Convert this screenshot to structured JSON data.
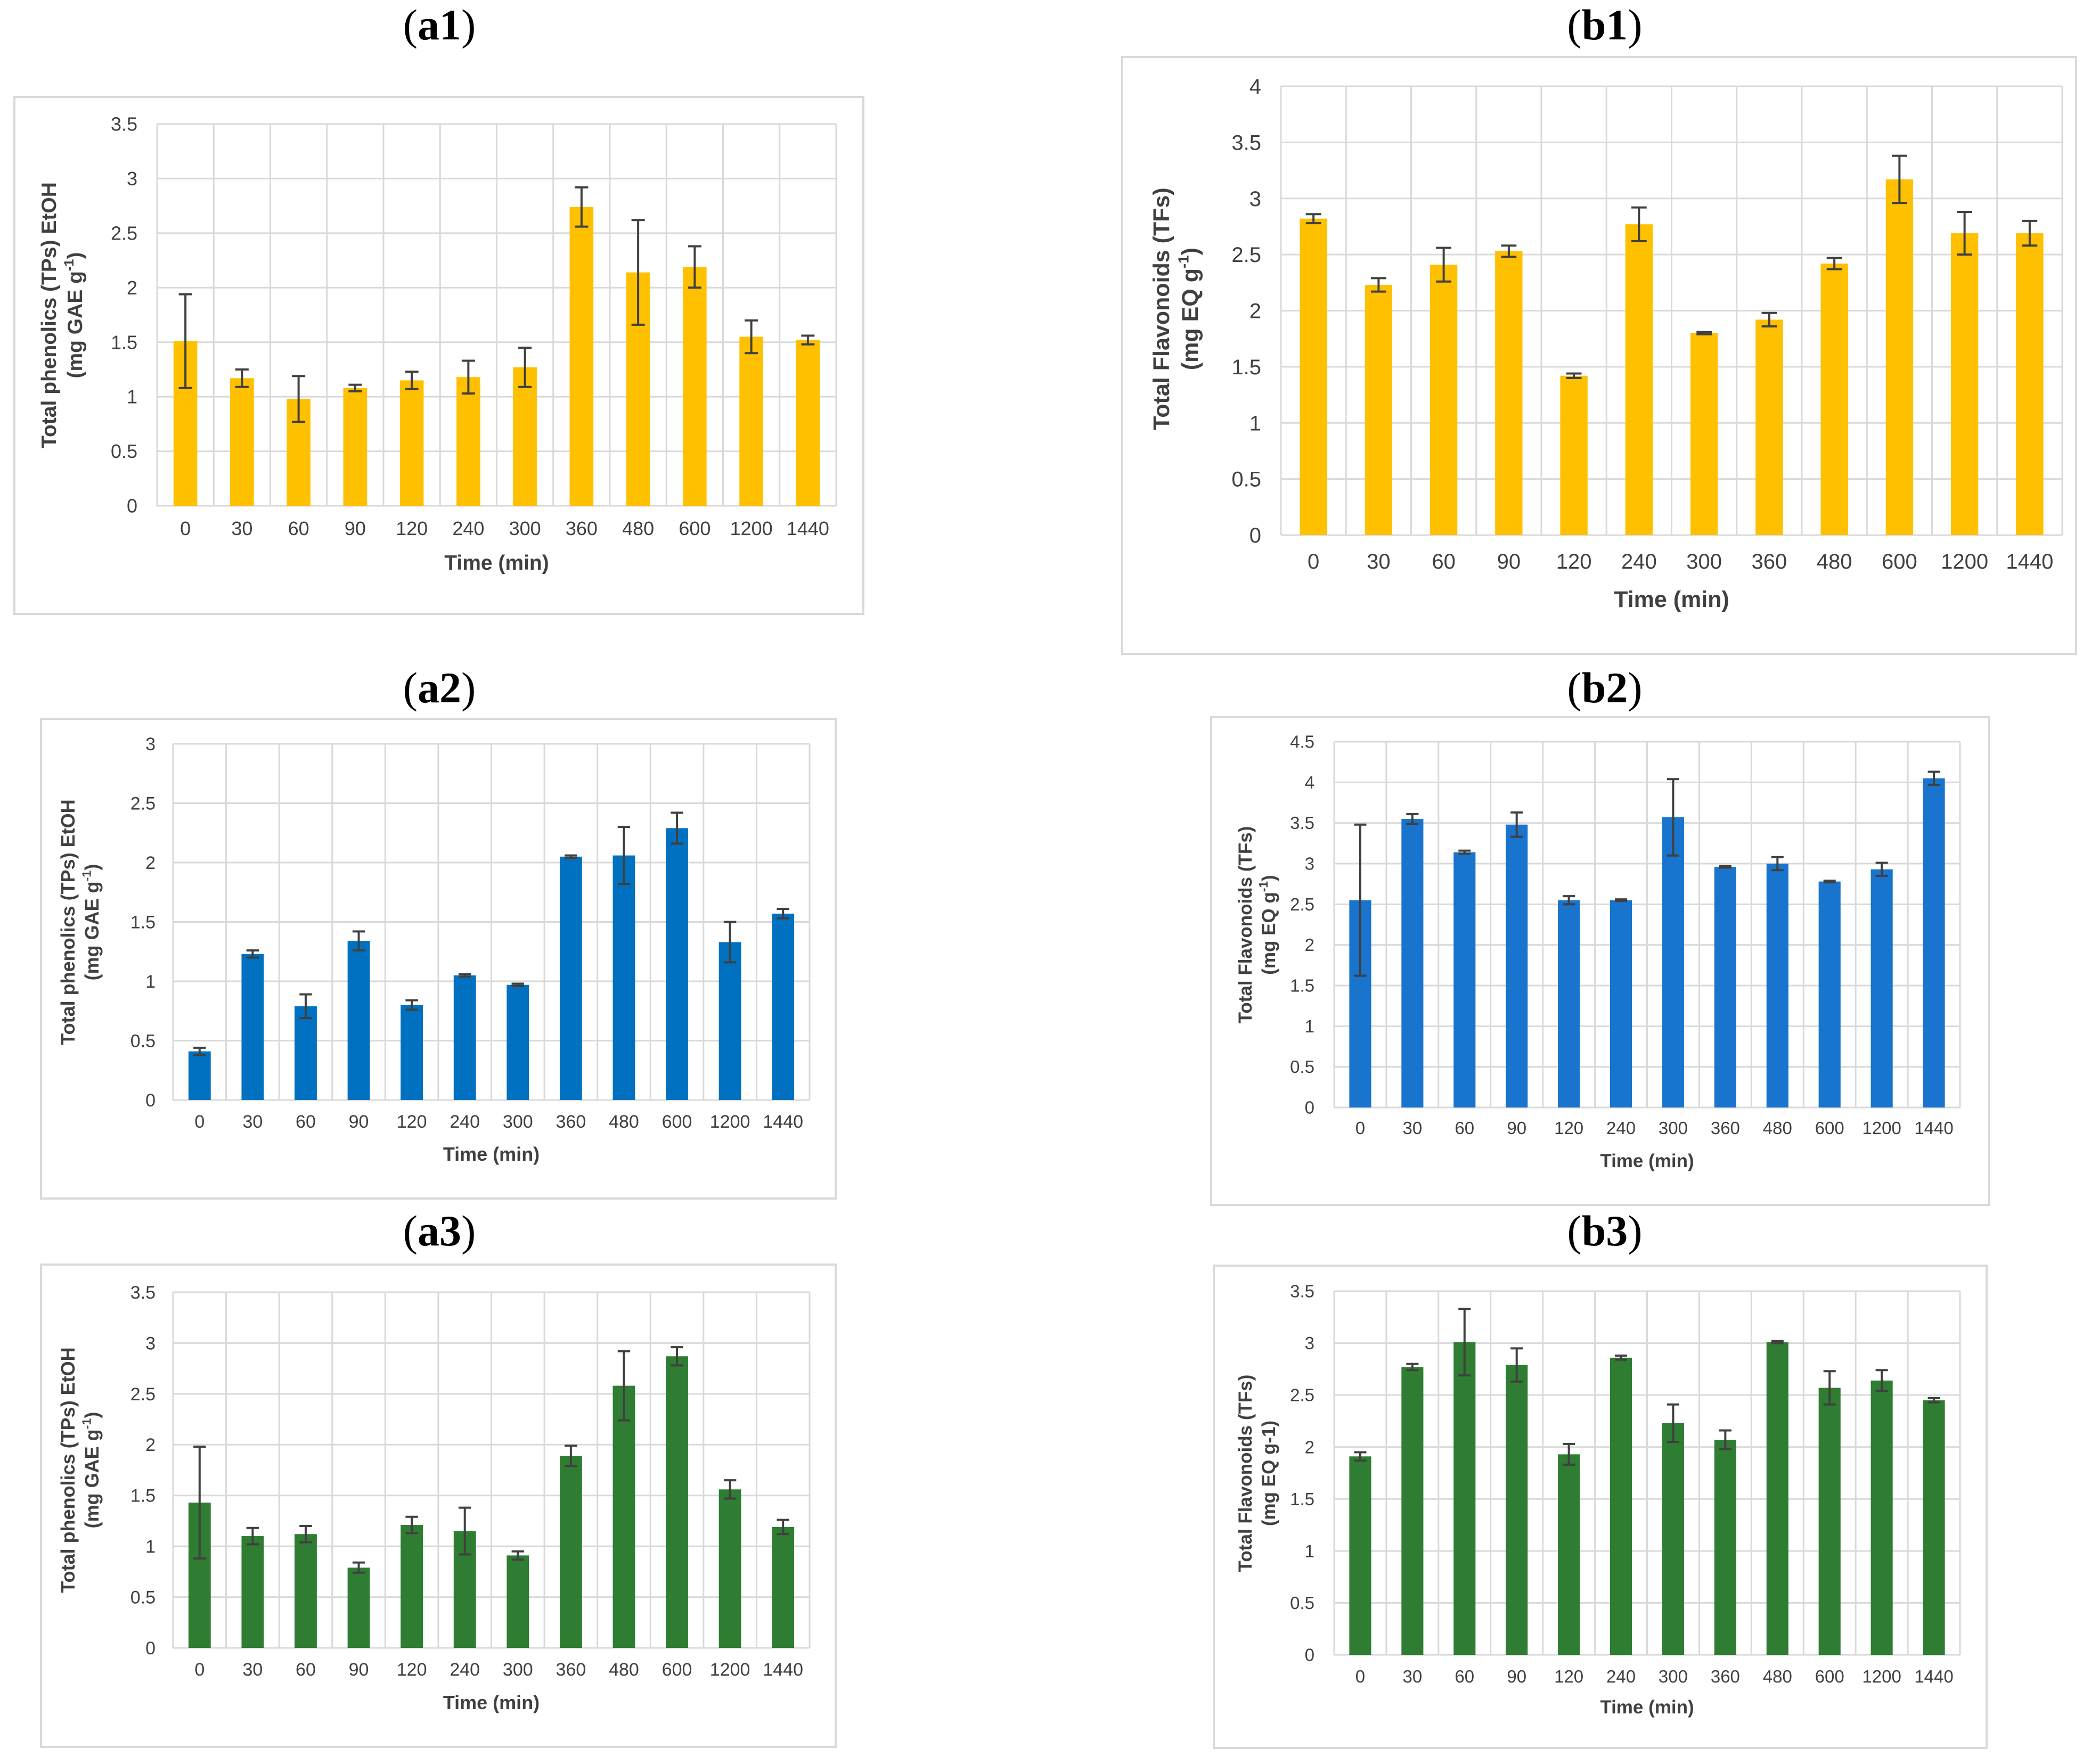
{
  "chart_data": [
    {
      "id": "a1",
      "panel_label": "a1",
      "type": "bar",
      "categories": [
        "0",
        "30",
        "60",
        "90",
        "120",
        "240",
        "300",
        "360",
        "480",
        "600",
        "1200",
        "1440"
      ],
      "values": [
        1.51,
        1.17,
        0.98,
        1.08,
        1.15,
        1.18,
        1.27,
        2.74,
        2.14,
        2.19,
        1.55,
        1.52
      ],
      "errors": [
        0.43,
        0.08,
        0.21,
        0.03,
        0.08,
        0.15,
        0.18,
        0.18,
        0.48,
        0.19,
        0.15,
        0.04
      ],
      "ylabel_line1": "Total phenolics (TPs)  EtOH",
      "ylabel_line2": "(mg GAE g",
      "ylabel_sup": "-1",
      "ylabel_end": ")",
      "xlabel": "Time (min)",
      "ylim": [
        0,
        3.5
      ],
      "yticks": [
        "0",
        "0.5",
        "1",
        "1.5",
        "2",
        "2.5",
        "3",
        "3.5"
      ],
      "color": "#ffc000"
    },
    {
      "id": "b1",
      "panel_label": "b1",
      "type": "bar",
      "categories": [
        "0",
        "30",
        "60",
        "90",
        "120",
        "240",
        "300",
        "360",
        "480",
        "600",
        "1200",
        "1440"
      ],
      "values": [
        2.82,
        2.23,
        2.41,
        2.53,
        1.42,
        2.77,
        1.8,
        1.92,
        2.42,
        3.17,
        2.69,
        2.69
      ],
      "errors": [
        0.04,
        0.06,
        0.15,
        0.05,
        0.02,
        0.15,
        0.01,
        0.06,
        0.05,
        0.21,
        0.19,
        0.11
      ],
      "ylabel_line1": "Total Flavonoids (TFs)",
      "ylabel_line2": "(mg EQ g",
      "ylabel_sup": "-1",
      "ylabel_end": ")",
      "xlabel": "Time (min)",
      "ylim": [
        0,
        4
      ],
      "yticks": [
        "0",
        "0.5",
        "1",
        "1.5",
        "2",
        "2.5",
        "3",
        "3.5",
        "4"
      ],
      "color": "#ffc000"
    },
    {
      "id": "a2",
      "panel_label": "a2",
      "type": "bar",
      "categories": [
        "0",
        "30",
        "60",
        "90",
        "120",
        "240",
        "300",
        "360",
        "480",
        "600",
        "1200",
        "1440"
      ],
      "values": [
        0.41,
        1.23,
        0.79,
        1.34,
        0.8,
        1.05,
        0.97,
        2.05,
        2.06,
        2.29,
        1.33,
        1.57
      ],
      "errors": [
        0.03,
        0.03,
        0.1,
        0.08,
        0.04,
        0.01,
        0.01,
        0.01,
        0.24,
        0.13,
        0.17,
        0.04
      ],
      "ylabel_line1": "Total phenolics (TPs)  EtOH",
      "ylabel_line2": "(mg GAE g",
      "ylabel_sup": "-1",
      "ylabel_end": ")",
      "xlabel": "Time (min)",
      "ylim": [
        0,
        3
      ],
      "yticks": [
        "0",
        "0.5",
        "1",
        "1.5",
        "2",
        "2.5",
        "3"
      ],
      "color": "#0070c0"
    },
    {
      "id": "b2",
      "panel_label": "b2",
      "type": "bar",
      "categories": [
        "0",
        "30",
        "60",
        "90",
        "120",
        "240",
        "300",
        "360",
        "480",
        "600",
        "1200",
        "1440"
      ],
      "values": [
        2.55,
        3.55,
        3.14,
        3.48,
        2.55,
        2.55,
        3.57,
        2.96,
        3.0,
        2.78,
        2.93,
        4.05
      ],
      "errors": [
        0.93,
        0.06,
        0.02,
        0.15,
        0.05,
        0.01,
        0.47,
        0.01,
        0.08,
        0.01,
        0.08,
        0.08
      ],
      "ylabel_line1": "Total Flavonoids (TFs)",
      "ylabel_line2": "(mg EQ g",
      "ylabel_sup": "-1",
      "ylabel_end": ")",
      "xlabel": "Time (min)",
      "ylim": [
        0,
        4.5
      ],
      "yticks": [
        "0",
        "0.5",
        "1",
        "1.5",
        "2",
        "2.5",
        "3",
        "3.5",
        "4",
        "4.5"
      ],
      "color": "#1874cd"
    },
    {
      "id": "a3",
      "panel_label": "a3",
      "type": "bar",
      "categories": [
        "0",
        "30",
        "60",
        "90",
        "120",
        "240",
        "300",
        "360",
        "480",
        "600",
        "1200",
        "1440"
      ],
      "values": [
        1.43,
        1.1,
        1.12,
        0.79,
        1.21,
        1.15,
        0.91,
        1.89,
        2.58,
        2.87,
        1.56,
        1.19
      ],
      "errors": [
        0.55,
        0.08,
        0.08,
        0.05,
        0.08,
        0.23,
        0.04,
        0.1,
        0.34,
        0.09,
        0.09,
        0.07
      ],
      "ylabel_line1": "Total phenolics (TPs)  EtOH",
      "ylabel_line2": "(mg GAE g",
      "ylabel_sup": "-1",
      "ylabel_end": ")",
      "xlabel": "Time (min)",
      "ylim": [
        0,
        3.5
      ],
      "yticks": [
        "0",
        "0.5",
        "1",
        "1.5",
        "2",
        "2.5",
        "3",
        "3.5"
      ],
      "color": "#2e7d32"
    },
    {
      "id": "b3",
      "panel_label": "b3",
      "type": "bar",
      "categories": [
        "0",
        "30",
        "60",
        "90",
        "120",
        "240",
        "300",
        "360",
        "480",
        "600",
        "1200",
        "1440"
      ],
      "values": [
        1.91,
        2.77,
        3.01,
        2.79,
        1.93,
        2.86,
        2.23,
        2.07,
        3.01,
        2.57,
        2.64,
        2.45
      ],
      "errors": [
        0.04,
        0.03,
        0.32,
        0.16,
        0.1,
        0.02,
        0.18,
        0.09,
        0.01,
        0.16,
        0.1,
        0.02
      ],
      "ylabel_line1": "Total Flavonoids (TFs)",
      "ylabel_line2": "(mg EQ g-1)",
      "ylabel_sup": "",
      "ylabel_end": "",
      "xlabel": "Time (min)",
      "ylim": [
        0,
        3.5
      ],
      "yticks": [
        "0",
        "0.5",
        "1",
        "1.5",
        "2",
        "2.5",
        "3",
        "3.5"
      ],
      "color": "#2e7d32"
    }
  ]
}
